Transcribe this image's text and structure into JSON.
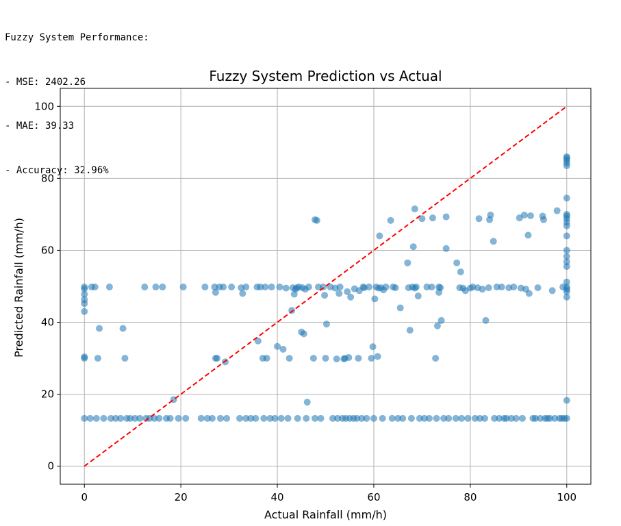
{
  "console": {
    "lines": [
      "Fuzzy System Performance:",
      "- MSE: 2402.26",
      "- MAE: 39.33",
      "- Accuracy: 32.96%"
    ]
  },
  "chart_data": {
    "type": "scatter",
    "title": "Fuzzy System Prediction vs Actual",
    "xlabel": "Actual Rainfall (mm/h)",
    "ylabel": "Predicted Rainfall (mm/h)",
    "xlim": [
      -5,
      105
    ],
    "ylim": [
      -5,
      105
    ],
    "xticks": [
      0,
      20,
      40,
      60,
      80,
      100
    ],
    "yticks": [
      0,
      20,
      40,
      60,
      80,
      100
    ],
    "grid": true,
    "point_color": "#1f77b4",
    "reference_line": {
      "x": [
        0,
        100
      ],
      "y": [
        0,
        100
      ],
      "color": "#ff0000",
      "style": "dashed"
    },
    "points": [
      [
        0,
        13.3
      ],
      [
        0,
        30
      ],
      [
        0,
        30.4
      ],
      [
        0,
        43
      ],
      [
        0,
        45.2
      ],
      [
        0,
        46.3
      ],
      [
        0,
        47.8
      ],
      [
        0,
        49.3
      ],
      [
        0,
        49.8
      ],
      [
        1.2,
        13.3
      ],
      [
        1.5,
        49.8
      ],
      [
        2.2,
        49.8
      ],
      [
        2.5,
        13.3
      ],
      [
        2.8,
        30
      ],
      [
        3.1,
        38.3
      ],
      [
        4,
        13.3
      ],
      [
        5.2,
        49.8
      ],
      [
        5.5,
        13.3
      ],
      [
        6.5,
        13.3
      ],
      [
        7.5,
        13.3
      ],
      [
        8,
        38.3
      ],
      [
        8.4,
        30
      ],
      [
        8.8,
        13.3
      ],
      [
        9.5,
        13.3
      ],
      [
        10.5,
        13.3
      ],
      [
        11.5,
        13.3
      ],
      [
        12.5,
        49.8
      ],
      [
        12.8,
        13.3
      ],
      [
        13.5,
        13.3
      ],
      [
        14.5,
        13.3
      ],
      [
        14.8,
        49.8
      ],
      [
        15.5,
        13.3
      ],
      [
        16.2,
        49.8
      ],
      [
        17,
        13.3
      ],
      [
        17.8,
        13.3
      ],
      [
        18.5,
        18.5
      ],
      [
        19.5,
        13.3
      ],
      [
        20.5,
        49.8
      ],
      [
        21,
        13.3
      ],
      [
        24.2,
        13.3
      ],
      [
        25,
        49.8
      ],
      [
        25.5,
        13.3
      ],
      [
        26.5,
        13.3
      ],
      [
        27,
        49.8
      ],
      [
        27.2,
        48.3
      ],
      [
        27.2,
        30
      ],
      [
        27.5,
        30
      ],
      [
        28,
        49.8
      ],
      [
        28.2,
        13.3
      ],
      [
        28.8,
        49.8
      ],
      [
        29.2,
        29
      ],
      [
        29.5,
        13.3
      ],
      [
        30.5,
        49.8
      ],
      [
        32.2,
        13.3
      ],
      [
        32.5,
        49.6
      ],
      [
        32.8,
        48
      ],
      [
        33.5,
        13.3
      ],
      [
        33.5,
        49.8
      ],
      [
        34.5,
        13.3
      ],
      [
        35.5,
        13.3
      ],
      [
        35.8,
        49.8
      ],
      [
        36,
        34.8
      ],
      [
        36.5,
        49.8
      ],
      [
        37,
        30
      ],
      [
        37.2,
        13.3
      ],
      [
        37.5,
        49.8
      ],
      [
        37.8,
        30
      ],
      [
        38.5,
        13.3
      ],
      [
        38.8,
        49.8
      ],
      [
        39.5,
        13.3
      ],
      [
        40,
        33.3
      ],
      [
        40.5,
        49.8
      ],
      [
        40.8,
        13.3
      ],
      [
        41.2,
        32.5
      ],
      [
        41.8,
        49.5
      ],
      [
        42.2,
        13.3
      ],
      [
        42.5,
        30
      ],
      [
        43,
        43.3
      ],
      [
        43.2,
        49.6
      ],
      [
        43.5,
        47.8
      ],
      [
        43.8,
        49.2
      ],
      [
        44,
        49.6
      ],
      [
        44.2,
        13.3
      ],
      [
        44.5,
        49.8
      ],
      [
        45,
        37.3
      ],
      [
        45.2,
        49.6
      ],
      [
        45.5,
        36.8
      ],
      [
        45.8,
        49.2
      ],
      [
        46,
        13.3
      ],
      [
        46.2,
        17.8
      ],
      [
        46.5,
        49.8
      ],
      [
        47.5,
        30
      ],
      [
        47.8,
        13.3
      ],
      [
        47.8,
        68.5
      ],
      [
        48.2,
        68.3
      ],
      [
        48.5,
        49.8
      ],
      [
        49,
        13.3
      ],
      [
        49.5,
        49.8
      ],
      [
        49.8,
        47.5
      ],
      [
        50,
        30
      ],
      [
        50.2,
        39.5
      ],
      [
        51,
        49.8
      ],
      [
        51.5,
        13.3
      ],
      [
        52,
        49.5
      ],
      [
        52.3,
        29.8
      ],
      [
        52.5,
        13.3
      ],
      [
        52.8,
        48
      ],
      [
        53,
        49.8
      ],
      [
        53.5,
        13.3
      ],
      [
        53.8,
        29.8
      ],
      [
        54,
        30
      ],
      [
        54.2,
        13.3
      ],
      [
        54.5,
        48.5
      ],
      [
        54.8,
        30.2
      ],
      [
        55,
        13.3
      ],
      [
        55.2,
        47
      ],
      [
        55.8,
        13.3
      ],
      [
        56,
        49.3
      ],
      [
        56.5,
        13.3
      ],
      [
        56.8,
        30
      ],
      [
        57,
        48.8
      ],
      [
        57.5,
        13.3
      ],
      [
        57.8,
        49.8
      ],
      [
        58,
        49.6
      ],
      [
        58.5,
        13.3
      ],
      [
        59,
        49.8
      ],
      [
        59.5,
        30
      ],
      [
        59.8,
        33.2
      ],
      [
        60,
        13.3
      ],
      [
        60.2,
        46.5
      ],
      [
        60.5,
        49.8
      ],
      [
        60.8,
        30.5
      ],
      [
        61,
        49.5
      ],
      [
        61.2,
        64
      ],
      [
        61.5,
        49.6
      ],
      [
        61.8,
        13.3
      ],
      [
        62,
        49
      ],
      [
        62.5,
        49.8
      ],
      [
        63.5,
        68.3
      ],
      [
        63.8,
        13.3
      ],
      [
        64,
        49.8
      ],
      [
        64.5,
        49.6
      ],
      [
        65,
        13.3
      ],
      [
        65.5,
        44
      ],
      [
        66,
        13.3
      ],
      [
        67,
        56.5
      ],
      [
        67.2,
        49.6
      ],
      [
        67.5,
        37.8
      ],
      [
        67.8,
        13.3
      ],
      [
        68,
        49.8
      ],
      [
        68.2,
        61
      ],
      [
        68.5,
        49.5
      ],
      [
        68.5,
        71.5
      ],
      [
        68.8,
        49.8
      ],
      [
        69.2,
        47.3
      ],
      [
        69.5,
        13.3
      ],
      [
        70,
        68.8
      ],
      [
        70.5,
        13.3
      ],
      [
        71,
        49.8
      ],
      [
        71.5,
        13.3
      ],
      [
        72,
        49.8
      ],
      [
        72.2,
        69
      ],
      [
        72.8,
        30
      ],
      [
        73,
        13.3
      ],
      [
        73.2,
        39
      ],
      [
        73.5,
        49.8
      ],
      [
        73.5,
        48.3
      ],
      [
        73.8,
        49.6
      ],
      [
        74,
        40.5
      ],
      [
        74.5,
        13.3
      ],
      [
        75,
        69.3
      ],
      [
        75,
        60.5
      ],
      [
        75.5,
        13.3
      ],
      [
        77,
        13.3
      ],
      [
        77.2,
        56.5
      ],
      [
        77.8,
        49.6
      ],
      [
        78,
        54
      ],
      [
        78.2,
        13.3
      ],
      [
        78.5,
        49.5
      ],
      [
        79,
        48.8
      ],
      [
        79.5,
        13.3
      ],
      [
        80,
        49.5
      ],
      [
        80.5,
        49.8
      ],
      [
        81,
        13.3
      ],
      [
        81.5,
        49.6
      ],
      [
        81.8,
        68.8
      ],
      [
        82,
        13.3
      ],
      [
        82.5,
        49.2
      ],
      [
        83,
        13.3
      ],
      [
        83.2,
        40.5
      ],
      [
        83.8,
        49.6
      ],
      [
        84,
        68.5
      ],
      [
        84.2,
        69.8
      ],
      [
        84.8,
        62.5
      ],
      [
        85,
        13.3
      ],
      [
        85.5,
        49.8
      ],
      [
        86,
        13.3
      ],
      [
        86.5,
        49.8
      ],
      [
        87,
        13.3
      ],
      [
        87.5,
        13.3
      ],
      [
        88,
        49.6
      ],
      [
        88.5,
        13.3
      ],
      [
        89,
        49.8
      ],
      [
        89.5,
        13.3
      ],
      [
        90.2,
        69
      ],
      [
        90.5,
        49.5
      ],
      [
        90.8,
        13.3
      ],
      [
        91.2,
        69.8
      ],
      [
        91.5,
        49.2
      ],
      [
        92,
        64.2
      ],
      [
        92.2,
        48
      ],
      [
        92.5,
        69.6
      ],
      [
        93,
        13.3
      ],
      [
        93.5,
        13.3
      ],
      [
        94,
        49.6
      ],
      [
        94.5,
        13.3
      ],
      [
        95,
        69.5
      ],
      [
        95.2,
        68.5
      ],
      [
        95.5,
        13.3
      ],
      [
        96,
        13.3
      ],
      [
        96.5,
        13.3
      ],
      [
        97,
        48.8
      ],
      [
        97.5,
        13.3
      ],
      [
        98,
        71
      ],
      [
        98.5,
        13.3
      ],
      [
        99,
        13.3
      ],
      [
        99.2,
        49.8
      ],
      [
        99.5,
        13.3
      ],
      [
        100,
        13.3
      ],
      [
        100,
        18.3
      ],
      [
        100,
        47
      ],
      [
        100,
        48.5
      ],
      [
        100,
        49.2
      ],
      [
        100,
        49.8
      ],
      [
        100,
        51.2
      ],
      [
        100,
        55.5
      ],
      [
        100,
        56.8
      ],
      [
        100,
        58.3
      ],
      [
        100,
        60
      ],
      [
        100,
        64
      ],
      [
        100,
        66.8
      ],
      [
        100,
        67.8
      ],
      [
        100,
        68.8
      ],
      [
        100,
        69.5
      ],
      [
        100,
        70
      ],
      [
        100,
        74.5
      ],
      [
        100,
        83.5
      ],
      [
        100,
        84.3
      ],
      [
        100,
        85
      ],
      [
        100,
        85.6
      ],
      [
        100,
        86
      ]
    ]
  }
}
